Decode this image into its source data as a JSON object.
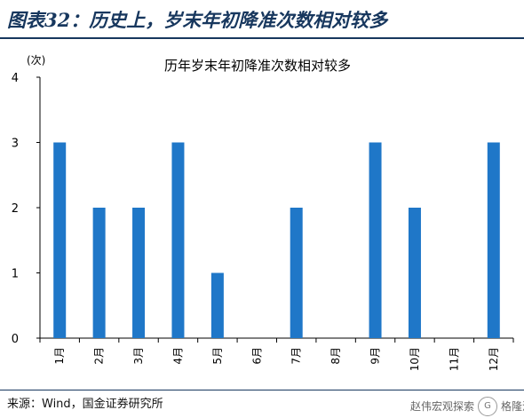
{
  "heading": "图表32：历史上，岁末年初降准次数相对较多",
  "source": "来源：Wind，国金证券研究所",
  "watermark": {
    "text": "赵伟宏观探索",
    "badge": "格隆汇"
  },
  "colors": {
    "bar": "#1f77c8",
    "heading": "#17375e",
    "axis": "#000000"
  },
  "chart_data": {
    "type": "bar",
    "title": "历年岁末年初降准次数相对较多",
    "ylabel": "(次)",
    "xlabel": "",
    "ylim": [
      0,
      4
    ],
    "yticks": [
      "0",
      "1",
      "2",
      "3",
      "4"
    ],
    "grid": false,
    "legend": "none",
    "categories": [
      "1月",
      "2月",
      "3月",
      "4月",
      "5月",
      "6月",
      "7月",
      "8月",
      "9月",
      "10月",
      "11月",
      "12月"
    ],
    "values": [
      3,
      2,
      2,
      3,
      1,
      0,
      2,
      0,
      3,
      2,
      0,
      3
    ]
  }
}
